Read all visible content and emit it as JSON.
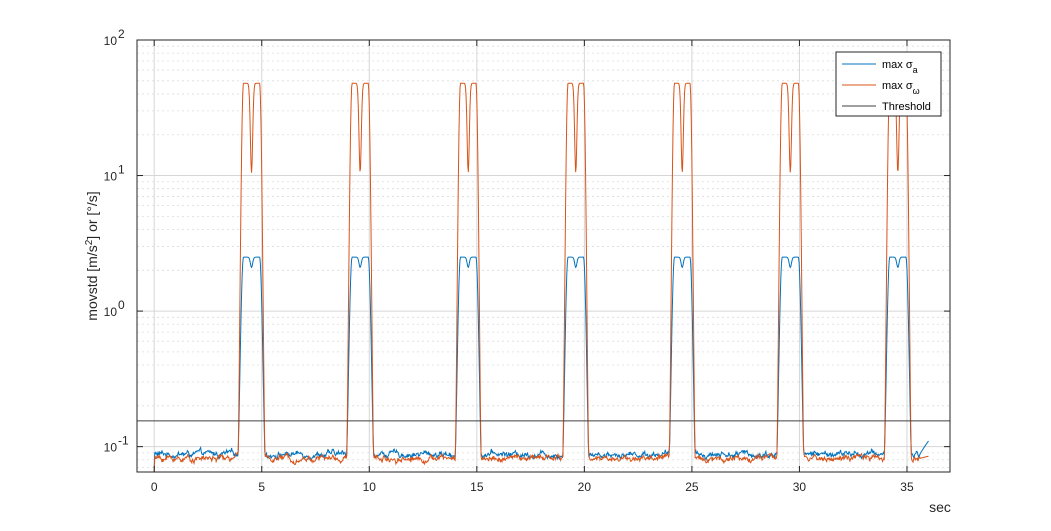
{
  "chart_data": {
    "type": "line",
    "title": "",
    "xlabel": "sec",
    "ylabel": "movstd [m/s²] or [°/s]",
    "xlim": [
      -0.8,
      37
    ],
    "ylim": [
      0.065,
      100
    ],
    "yscale": "log",
    "grid": true,
    "minor_grid": true,
    "legend_position": "top-right",
    "x_ticks": [
      0,
      5,
      10,
      15,
      20,
      25,
      30,
      35
    ],
    "x_tick_labels": [
      "0",
      "5",
      "10",
      "15",
      "20",
      "25",
      "30",
      "35"
    ],
    "y_ticks": [
      0.1,
      1,
      10,
      100
    ],
    "y_tick_labels": [
      {
        "base": "10",
        "exp": "-1"
      },
      {
        "base": "10",
        "exp": "0"
      },
      {
        "base": "10",
        "exp": "1"
      },
      {
        "base": "10",
        "exp": "2"
      }
    ],
    "pulses": [
      {
        "start": 3.9,
        "end": 5.15
      },
      {
        "start": 8.95,
        "end": 10.2
      },
      {
        "start": 14.0,
        "end": 15.2
      },
      {
        "start": 19.0,
        "end": 20.2
      },
      {
        "start": 23.95,
        "end": 25.15
      },
      {
        "start": 28.95,
        "end": 30.2
      },
      {
        "start": 33.95,
        "end": 35.2
      }
    ],
    "series": [
      {
        "name": "max σ",
        "subscript": "a",
        "color": "#0072BD",
        "baseline": 0.088,
        "peak": 2.5,
        "dip": 2.1,
        "end_value": 0.11
      },
      {
        "name": "max σ",
        "subscript": "ω",
        "color": "#D95319",
        "baseline": 0.082,
        "peak": 48,
        "dip": 10.5,
        "end_value": 0.085
      },
      {
        "name": "Threshold",
        "color": "#404040",
        "value": 0.155
      }
    ]
  }
}
